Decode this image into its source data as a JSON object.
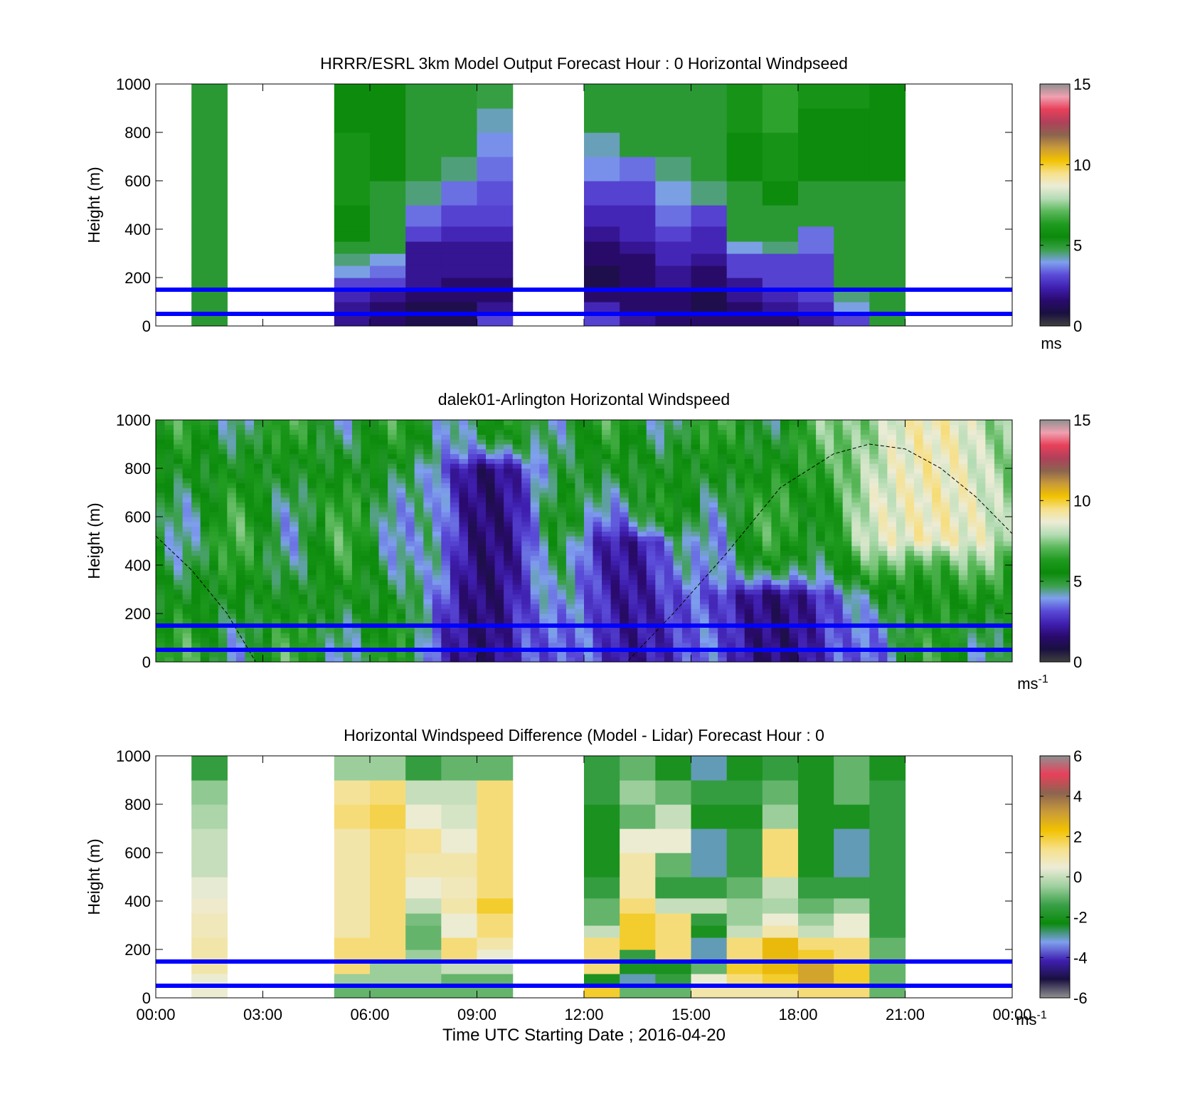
{
  "figure": {
    "xlabel": "Time UTC  Starting Date ; 2016-04-20"
  },
  "colors": {
    "reference_line": "#0000ff",
    "colormap_windspeed": [
      "#404040",
      "#1a1040",
      "#2a0a6e",
      "#3f1fb0",
      "#5a4bd8",
      "#7fa0ee",
      "#3aa048",
      "#0b8a0b",
      "#1f9b1f",
      "#5bb85b",
      "#b5dcb5",
      "#ececd6",
      "#f6e08a",
      "#f2c200",
      "#c89a3a",
      "#8c6450",
      "#b0405a",
      "#e8405a",
      "#f0a0b0",
      "#909090"
    ],
    "colormap_difference": [
      "#909090",
      "#1a1040",
      "#3f1fb0",
      "#7fa0ee",
      "#0b8a0b",
      "#3aa048",
      "#9fd09f",
      "#ececd6",
      "#f6e08a",
      "#f2c200",
      "#c89a3a",
      "#8c6450",
      "#e8405a",
      "#909090"
    ]
  },
  "chart_data": [
    {
      "type": "heatmap",
      "title": "HRRR/ESRL 3km Model Output   Forecast Hour : 0 Horizontal Windpseed",
      "ylabel": "Height (m)",
      "ylim": [
        0,
        1000
      ],
      "y_ticks": [
        "0",
        "200",
        "400",
        "600",
        "800",
        "1000"
      ],
      "xlim_hours": [
        0,
        24
      ],
      "x_ticks": [
        "00:00",
        "03:00",
        "06:00",
        "09:00",
        "12:00",
        "15:00",
        "18:00",
        "21:00",
        "00:00"
      ],
      "colorbar": {
        "range": [
          0,
          15
        ],
        "ticks": [
          "0",
          "5",
          "10",
          "15"
        ],
        "unit_label": "ms",
        "unit_sup": ""
      },
      "reference_lines_m": [
        50,
        150
      ],
      "columns_hours": [
        1,
        5,
        6,
        7,
        8,
        9,
        12,
        13,
        14,
        15,
        16,
        17,
        18,
        19,
        20
      ],
      "levels_m": [
        25,
        75,
        125,
        175,
        225,
        275,
        325,
        375,
        450,
        550,
        650,
        750,
        850,
        950
      ],
      "values_ms": [
        [
          5,
          5,
          5,
          5,
          5,
          5,
          5,
          5,
          5,
          5,
          5,
          5,
          5,
          5
        ],
        [
          2,
          2,
          2.5,
          3,
          4,
          4.5,
          5,
          5.5,
          5.5,
          6,
          6,
          6,
          5.5,
          5.5
        ],
        [
          1.5,
          1.5,
          2,
          3,
          3.5,
          4,
          5,
          5,
          5,
          5,
          5.5,
          5.5,
          5.5,
          5.5
        ],
        [
          1,
          1,
          1.5,
          2,
          2,
          2,
          2,
          3,
          3.5,
          4.5,
          5,
          5,
          5,
          5
        ],
        [
          1,
          1,
          1.5,
          1.5,
          2,
          2,
          2,
          2.5,
          3,
          3.5,
          4.5,
          5,
          5,
          5
        ],
        [
          3,
          2,
          1.5,
          1.5,
          2,
          2,
          2,
          2.5,
          3,
          3.2,
          3.5,
          3.8,
          4.2,
          4.8
        ],
        [
          3,
          2.5,
          1.5,
          1,
          1,
          1.5,
          1.5,
          2,
          2.5,
          3,
          3.8,
          4.2,
          5,
          5
        ],
        [
          2,
          1.5,
          1.5,
          1.5,
          1.5,
          1.5,
          2,
          2.5,
          2.5,
          3,
          3.5,
          5,
          5,
          5
        ],
        [
          1.5,
          1.5,
          1.5,
          2,
          2,
          2.5,
          2.5,
          3,
          3.5,
          4,
          4.5,
          5,
          5,
          5
        ],
        [
          1.5,
          1,
          1,
          1.5,
          1.5,
          2,
          2.5,
          2.5,
          3,
          4.5,
          5,
          5,
          5,
          5
        ],
        [
          1.5,
          1.5,
          2,
          2,
          3,
          3,
          4,
          5,
          5,
          5,
          5.5,
          5.5,
          6,
          6
        ],
        [
          1.5,
          2,
          2.5,
          3,
          3,
          3,
          4.5,
          5,
          5,
          5.5,
          6,
          6,
          6.5,
          6.5
        ],
        [
          2,
          2.5,
          3,
          3,
          3,
          3,
          3.5,
          3.5,
          5,
          5,
          5.5,
          5.5,
          5.5,
          6
        ],
        [
          3,
          4,
          4.5,
          5,
          5,
          5,
          5,
          5,
          5,
          5,
          5.5,
          5.5,
          5.5,
          6
        ],
        [
          5,
          5,
          5,
          5,
          5,
          5,
          5,
          5,
          5,
          5,
          5.5,
          5.5,
          5.5,
          5.5
        ]
      ]
    },
    {
      "type": "heatmap",
      "title": "dalek01-Arlington  Horizontal Windspeed",
      "ylabel": "Height (m)",
      "ylim": [
        0,
        1000
      ],
      "y_ticks": [
        "0",
        "200",
        "400",
        "600",
        "800",
        "1000"
      ],
      "xlim_hours": [
        0,
        24
      ],
      "colorbar": {
        "range": [
          0,
          15
        ],
        "ticks": [
          "0",
          "5",
          "10",
          "15"
        ],
        "unit_label": "ms",
        "unit_sup": "-1"
      },
      "reference_lines_m": [
        50,
        150
      ],
      "curve_note": "dashed boundary-layer height curve",
      "curve_points": [
        [
          0,
          520
        ],
        [
          1,
          380
        ],
        [
          2,
          200
        ],
        [
          2.8,
          0
        ],
        [
          13.2,
          0
        ],
        [
          14.5,
          200
        ],
        [
          16,
          450
        ],
        [
          17.5,
          720
        ],
        [
          19,
          860
        ],
        [
          20,
          900
        ],
        [
          21,
          880
        ],
        [
          22,
          800
        ],
        [
          23,
          680
        ],
        [
          24,
          530
        ]
      ],
      "field_features": [
        {
          "desc": "deep low-speed core",
          "t_hours": [
            8,
            10.5
          ],
          "top_m": 800,
          "value_ms": 1.5
        },
        {
          "desc": "secondary low-speed core",
          "t_hours": [
            12,
            14.5
          ],
          "top_m": 500,
          "value_ms": 2
        },
        {
          "desc": "low-level low-speed layer",
          "t_hours": [
            15.5,
            19.5
          ],
          "top_m": 280,
          "value_ms": 1.5
        },
        {
          "desc": "upper high-speed region",
          "t_hours": [
            19.5,
            24
          ],
          "bottom_m": 500,
          "value_ms": 9
        }
      ]
    },
    {
      "type": "heatmap",
      "title": "Horizontal Windspeed Difference (Model - Lidar) Forecast Hour : 0",
      "ylabel": "Height (m)",
      "ylim": [
        0,
        1000
      ],
      "y_ticks": [
        "0",
        "200",
        "400",
        "600",
        "800",
        "1000"
      ],
      "xlim_hours": [
        0,
        24
      ],
      "colorbar": {
        "range": [
          -6,
          6
        ],
        "ticks": [
          "-6",
          "-4",
          "-2",
          "0",
          "2",
          "4",
          "6"
        ],
        "unit_label": "ms",
        "unit_sup": "-1"
      },
      "reference_lines_m": [
        50,
        150
      ],
      "columns_hours": [
        1,
        5,
        6,
        7,
        8,
        9,
        12,
        13,
        14,
        15,
        16,
        17,
        18,
        19,
        20
      ],
      "levels_m": [
        25,
        75,
        125,
        175,
        225,
        275,
        325,
        375,
        450,
        550,
        650,
        750,
        850,
        950
      ],
      "values_ms": [
        [
          0.5,
          0.5,
          1,
          1,
          1,
          0.8,
          0.8,
          0.6,
          0.4,
          0,
          0,
          -0.3,
          -0.6,
          -1.5
        ],
        [
          -1,
          -0.5,
          1.5,
          1.5,
          1.5,
          1,
          1,
          1,
          1,
          1,
          1,
          1.5,
          1.2,
          -0.5
        ],
        [
          -1,
          -0.5,
          -0.5,
          1.5,
          1.5,
          1.5,
          1.5,
          1.5,
          1.5,
          1.5,
          1.5,
          1.8,
          1.5,
          -0.5
        ],
        [
          -1,
          -0.5,
          -0.5,
          -0.5,
          -1,
          -1,
          -0.8,
          0,
          0.5,
          1,
          1.3,
          0.5,
          0,
          -1.5
        ],
        [
          -1,
          -1,
          0,
          1.5,
          1.5,
          0.5,
          0.5,
          1,
          0.8,
          1,
          0.5,
          0.2,
          0,
          -1
        ],
        [
          -1,
          -1,
          0,
          0.5,
          1,
          1.5,
          1.5,
          2,
          1.5,
          1.5,
          1.5,
          1.5,
          1.5,
          -1
        ],
        [
          2,
          -2,
          1.5,
          1.5,
          1.5,
          0,
          -1,
          -1,
          -1.5,
          -2,
          -2,
          -2,
          -1.5,
          -1.5
        ],
        [
          -1,
          -3,
          -2,
          -1.5,
          2,
          2,
          2,
          1.5,
          1,
          1,
          0.5,
          -1,
          -0.5,
          -1
        ],
        [
          -1,
          -1.5,
          -2,
          1.5,
          1.5,
          1.5,
          1.5,
          0,
          -1.5,
          -1,
          0.5,
          0,
          -1,
          -2
        ],
        [
          1,
          0.5,
          -1,
          -3,
          -3,
          -2,
          -1.5,
          0,
          -1.5,
          -3,
          -3,
          -2,
          -1.5,
          -3
        ],
        [
          1,
          1.5,
          2,
          1.5,
          1.5,
          0,
          -0.5,
          -0.5,
          -1,
          -1.5,
          -1.5,
          -2,
          -1.5,
          -2
        ],
        [
          1,
          2,
          2.5,
          2.5,
          2.5,
          1,
          0.5,
          -0.3,
          0,
          1.5,
          1.5,
          -0.5,
          -1,
          -1.5
        ],
        [
          1.5,
          3,
          3,
          2,
          1.5,
          0,
          -0.5,
          -1,
          -1.5,
          -2,
          -2,
          -2,
          -2,
          -2
        ],
        [
          1.5,
          2,
          2,
          1.5,
          1.5,
          0.5,
          0.5,
          -0.5,
          -1.5,
          -3,
          -3,
          -2,
          -1,
          -1
        ],
        [
          -1,
          -1,
          -1,
          -1,
          -1,
          -1.5,
          -1.5,
          -1.5,
          -1.5,
          -1.5,
          -1.5,
          -1.5,
          -1.5,
          -2
        ]
      ]
    }
  ]
}
